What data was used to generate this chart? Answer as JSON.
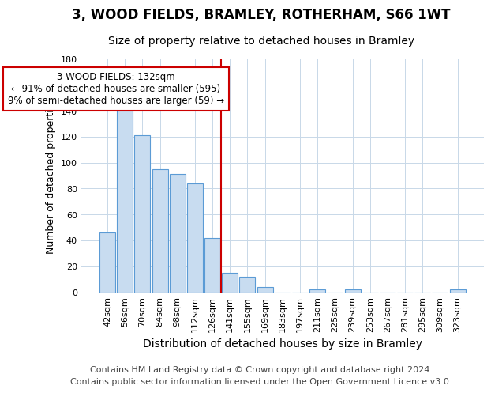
{
  "title": "3, WOOD FIELDS, BRAMLEY, ROTHERHAM, S66 1WT",
  "subtitle": "Size of property relative to detached houses in Bramley",
  "xlabel": "Distribution of detached houses by size in Bramley",
  "ylabel": "Number of detached properties",
  "bin_labels": [
    "42sqm",
    "56sqm",
    "70sqm",
    "84sqm",
    "98sqm",
    "112sqm",
    "126sqm",
    "141sqm",
    "155sqm",
    "169sqm",
    "183sqm",
    "197sqm",
    "211sqm",
    "225sqm",
    "239sqm",
    "253sqm",
    "267sqm",
    "281sqm",
    "295sqm",
    "309sqm",
    "323sqm"
  ],
  "bar_heights": [
    46,
    145,
    121,
    95,
    91,
    84,
    42,
    15,
    12,
    4,
    0,
    0,
    2,
    0,
    2,
    0,
    0,
    0,
    0,
    0,
    2
  ],
  "bar_color": "#c8dcf0",
  "bar_edge_color": "#5b9bd5",
  "vline_x_index": 7,
  "vline_color": "#cc0000",
  "annotation_text": "3 WOOD FIELDS: 132sqm\n← 91% of detached houses are smaller (595)\n9% of semi-detached houses are larger (59) →",
  "annotation_box_facecolor": "#ffffff",
  "annotation_box_edgecolor": "#cc0000",
  "ylim": [
    0,
    180
  ],
  "yticks": [
    0,
    20,
    40,
    60,
    80,
    100,
    120,
    140,
    160,
    180
  ],
  "footer1": "Contains HM Land Registry data © Crown copyright and database right 2024.",
  "footer2": "Contains public sector information licensed under the Open Government Licence v3.0.",
  "title_fontsize": 12,
  "subtitle_fontsize": 10,
  "xlabel_fontsize": 10,
  "ylabel_fontsize": 9,
  "tick_fontsize": 8,
  "annot_fontsize": 8.5,
  "footer_fontsize": 8
}
